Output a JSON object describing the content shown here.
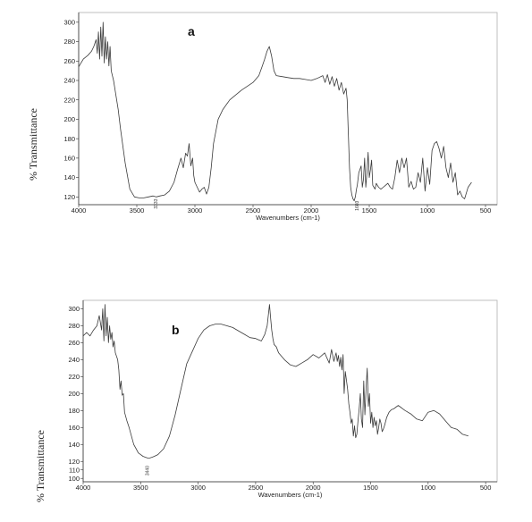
{
  "chart_data": [
    {
      "type": "line",
      "panel_label": "a",
      "xlabel": "Wavenumbers (cm-1)",
      "ylabel": "% Transmittance",
      "xlim": [
        4000,
        400
      ],
      "ylim": [
        112,
        310
      ],
      "xticks": [
        4000,
        3500,
        3000,
        2500,
        2000,
        1500,
        1000,
        500
      ],
      "yticks": [
        120,
        140,
        160,
        180,
        200,
        220,
        240,
        260,
        280,
        300
      ],
      "peak_labels": [
        {
          "x": 3333,
          "y": 118,
          "text": "3333"
        },
        {
          "x": 1603,
          "y": 116,
          "text": "1603"
        }
      ],
      "series": [
        {
          "x": [
            4000,
            3960,
            3920,
            3890,
            3870,
            3850,
            3840,
            3830,
            3820,
            3810,
            3800,
            3790,
            3780,
            3770,
            3760,
            3750,
            3740,
            3730,
            3720,
            3700,
            3680,
            3660,
            3640,
            3600,
            3560,
            3520,
            3480,
            3440,
            3400,
            3360,
            3333,
            3300,
            3260,
            3220,
            3180,
            3150,
            3120,
            3100,
            3080,
            3065,
            3050,
            3035,
            3020,
            3010,
            3000,
            2980,
            2960,
            2940,
            2920,
            2900,
            2880,
            2860,
            2840,
            2800,
            2760,
            2700,
            2600,
            2500,
            2450,
            2420,
            2400,
            2380,
            2360,
            2340,
            2320,
            2300,
            2250,
            2200,
            2150,
            2100,
            2050,
            2000,
            1950,
            1900,
            1880,
            1860,
            1840,
            1820,
            1800,
            1780,
            1760,
            1740,
            1720,
            1700,
            1690,
            1670,
            1660,
            1650,
            1640,
            1630,
            1620,
            1610,
            1603,
            1590,
            1570,
            1560,
            1550,
            1540,
            1530,
            1520,
            1510,
            1500,
            1490,
            1480,
            1470,
            1460,
            1450,
            1440,
            1420,
            1400,
            1380,
            1360,
            1340,
            1320,
            1300,
            1280,
            1260,
            1240,
            1220,
            1200,
            1180,
            1160,
            1140,
            1120,
            1100,
            1080,
            1060,
            1040,
            1020,
            1000,
            980,
            960,
            940,
            920,
            900,
            880,
            860,
            840,
            820,
            800,
            780,
            760,
            740,
            720,
            700,
            680,
            650,
            620
          ],
          "y": [
            254,
            262,
            266,
            270,
            275,
            282,
            268,
            290,
            262,
            295,
            265,
            300,
            258,
            285,
            262,
            280,
            255,
            275,
            250,
            240,
            225,
            210,
            190,
            155,
            128,
            120,
            119,
            119,
            120,
            121,
            120,
            121,
            122,
            126,
            135,
            148,
            160,
            150,
            165,
            162,
            175,
            152,
            160,
            142,
            135,
            130,
            125,
            128,
            130,
            123,
            130,
            150,
            175,
            200,
            210,
            220,
            230,
            238,
            245,
            255,
            262,
            270,
            275,
            265,
            250,
            245,
            244,
            243,
            242,
            242,
            241,
            240,
            242,
            245,
            238,
            246,
            236,
            244,
            234,
            242,
            230,
            238,
            226,
            232,
            220,
            150,
            130,
            122,
            118,
            116,
            120,
            128,
            132,
            145,
            152,
            130,
            138,
            160,
            130,
            145,
            166,
            140,
            148,
            158,
            132,
            130,
            128,
            134,
            130,
            128,
            130,
            132,
            134,
            130,
            128,
            140,
            158,
            145,
            160,
            150,
            160,
            130,
            136,
            128,
            130,
            145,
            135,
            160,
            126,
            150,
            133,
            168,
            175,
            177,
            170,
            160,
            172,
            150,
            140,
            155,
            135,
            145,
            122,
            126,
            120,
            118,
            130,
            135
          ]
        }
      ]
    },
    {
      "type": "line",
      "panel_label": "b",
      "xlabel": "Wavenumbers (cm-1)",
      "ylabel": "% Transmittance",
      "xlim": [
        4000,
        400
      ],
      "ylim": [
        96,
        310
      ],
      "xticks": [
        4000,
        3500,
        3000,
        2500,
        2000,
        1500,
        1000,
        500
      ],
      "yticks": [
        100,
        110,
        120,
        140,
        160,
        180,
        200,
        220,
        240,
        260,
        280,
        300
      ],
      "peak_labels": [
        {
          "x": 3440,
          "y": 115,
          "text": "3440"
        }
      ],
      "series": [
        {
          "x": [
            4000,
            3970,
            3940,
            3910,
            3880,
            3860,
            3840,
            3830,
            3820,
            3810,
            3800,
            3790,
            3780,
            3770,
            3760,
            3750,
            3740,
            3730,
            3720,
            3700,
            3690,
            3680,
            3670,
            3660,
            3650,
            3640,
            3620,
            3600,
            3580,
            3560,
            3540,
            3520,
            3500,
            3480,
            3460,
            3440,
            3420,
            3400,
            3380,
            3350,
            3300,
            3250,
            3200,
            3150,
            3100,
            3050,
            3000,
            2950,
            2900,
            2850,
            2800,
            2750,
            2700,
            2650,
            2600,
            2550,
            2500,
            2450,
            2420,
            2400,
            2380,
            2370,
            2360,
            2350,
            2340,
            2320,
            2300,
            2250,
            2200,
            2150,
            2100,
            2050,
            2000,
            1950,
            1900,
            1860,
            1840,
            1820,
            1800,
            1790,
            1780,
            1770,
            1760,
            1750,
            1740,
            1730,
            1720,
            1700,
            1690,
            1680,
            1670,
            1660,
            1650,
            1640,
            1630,
            1620,
            1610,
            1600,
            1590,
            1580,
            1570,
            1560,
            1550,
            1540,
            1530,
            1520,
            1510,
            1500,
            1490,
            1480,
            1470,
            1460,
            1450,
            1440,
            1430,
            1420,
            1410,
            1400,
            1390,
            1380,
            1360,
            1340,
            1320,
            1300,
            1280,
            1260,
            1240,
            1220,
            1200,
            1150,
            1100,
            1050,
            1000,
            950,
            900,
            850,
            800,
            750,
            700,
            650
          ],
          "y": [
            268,
            272,
            268,
            275,
            280,
            292,
            275,
            300,
            262,
            305,
            268,
            290,
            260,
            280,
            264,
            272,
            255,
            262,
            248,
            240,
            228,
            205,
            215,
            198,
            200,
            178,
            168,
            160,
            150,
            140,
            135,
            130,
            128,
            126,
            125,
            124,
            124,
            125,
            126,
            128,
            135,
            150,
            175,
            205,
            235,
            250,
            265,
            275,
            280,
            282,
            282,
            280,
            278,
            274,
            270,
            266,
            265,
            262,
            270,
            280,
            305,
            290,
            275,
            265,
            258,
            255,
            248,
            240,
            234,
            232,
            236,
            240,
            246,
            242,
            248,
            236,
            252,
            238,
            248,
            238,
            245,
            232,
            243,
            228,
            246,
            200,
            226,
            205,
            188,
            178,
            165,
            170,
            150,
            162,
            148,
            152,
            168,
            182,
            200,
            170,
            160,
            215,
            175,
            205,
            230,
            185,
            200,
            165,
            178,
            160,
            172,
            162,
            168,
            152,
            160,
            170,
            165,
            155,
            158,
            162,
            172,
            178,
            181,
            182,
            184,
            186,
            184,
            182,
            180,
            176,
            170,
            168,
            178,
            180,
            176,
            168,
            160,
            158,
            152,
            150
          ]
        }
      ]
    }
  ]
}
